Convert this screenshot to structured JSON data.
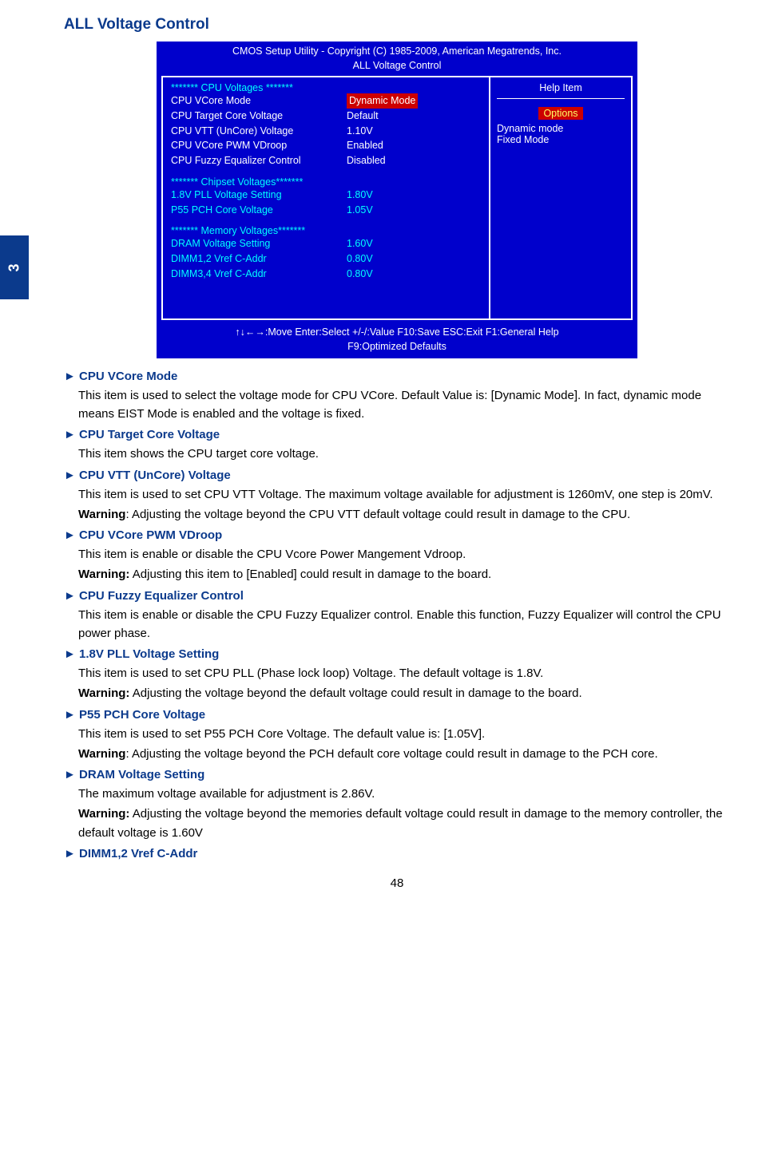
{
  "page": {
    "sideTab": "3",
    "title": "ALL Voltage Control",
    "pageNumber": "48"
  },
  "bios": {
    "headerLine1": "CMOS Setup Utility - Copyright (C) 1985-2009, American Megatrends, Inc.",
    "headerLine2": "ALL Voltage Control",
    "sections": {
      "cpuHeader": "******* CPU Voltages *******",
      "rows": [
        {
          "label": "CPU VCore Mode",
          "value": "Dynamic Mode",
          "highlight": true,
          "cyan": false
        },
        {
          "label": "CPU Target Core Voltage",
          "value": "Default",
          "highlight": false,
          "cyan": false
        },
        {
          "label": "CPU VTT (UnCore) Voltage",
          "value": "1.10V",
          "highlight": false,
          "cyan": false
        },
        {
          "label": "CPU VCore PWM VDroop",
          "value": "Enabled",
          "highlight": false,
          "cyan": false
        },
        {
          "label": "CPU Fuzzy Equalizer Control",
          "value": "Disabled",
          "highlight": false,
          "cyan": false
        }
      ],
      "chipsetHeader": "******* Chipset Voltages*******",
      "chipsetRows": [
        {
          "label": "1.8V PLL Voltage Setting",
          "value": "1.80V"
        },
        {
          "label": "P55 PCH Core Voltage",
          "value": "1.05V"
        }
      ],
      "memoryHeader": "******* Memory Voltages*******",
      "memoryRows": [
        {
          "label": "DRAM Voltage Setting",
          "value": "1.60V"
        },
        {
          "label": "DIMM1,2 Vref C-Addr",
          "value": "0.80V"
        },
        {
          "label": "DIMM3,4 Vref C-Addr",
          "value": "0.80V"
        }
      ]
    },
    "help": {
      "title": "Help Item",
      "optionsLabel": "Options",
      "opt1": "Dynamic mode",
      "opt2": "Fixed Mode"
    },
    "footerLine1": "↑↓←→:Move   Enter:Select    +/-/:Value   F10:Save   ESC:Exit    F1:General Help",
    "footerLine2": "F9:Optimized Defaults"
  },
  "content": [
    {
      "heading": "► CPU VCore Mode",
      "paras": [
        "This item is used to select the voltage mode for CPU VCore. Default Value is: [Dynamic Mode]. In fact, dynamic mode means EIST Mode is enabled and the voltage is fixed."
      ]
    },
    {
      "heading": "► CPU Target Core Voltage",
      "paras": [
        "This item shows the CPU target core voltage."
      ]
    },
    {
      "heading": "► CPU VTT (UnCore) Voltage",
      "paras": [
        "This item is used to set CPU VTT Voltage. The maximum voltage available for adjustment is 1260mV, one step is 20mV.",
        "<b>Warning</b>: Adjusting the voltage beyond the CPU VTT default voltage could result in damage to the CPU."
      ]
    },
    {
      "heading": "► CPU VCore PWM VDroop",
      "paras": [
        "This item is enable or disable the CPU Vcore Power Mangement Vdroop.",
        "<b>Warning:</b> Adjusting this item to [Enabled] could result in damage to the board."
      ]
    },
    {
      "heading": "► CPU Fuzzy Equalizer Control",
      "paras": [
        "This item is enable or disable the CPU Fuzzy Equalizer control. Enable this function, Fuzzy Equalizer will control the CPU power phase."
      ]
    },
    {
      "heading": "► 1.8V PLL Voltage Setting",
      "paras": [
        "This item is used to set CPU PLL (Phase lock loop) Voltage. The default voltage is 1.8V.",
        "<b>Warning:</b> Adjusting the voltage beyond the default voltage could result in damage to the board."
      ]
    },
    {
      "heading": "► P55 PCH Core Voltage",
      "paras": [
        "This item is used to set P55 PCH Core Voltage. The default value is: [1.05V].",
        "<b>Warning</b>: Adjusting the voltage beyond the PCH default core voltage could result in damage to the PCH core."
      ]
    },
    {
      "heading": "► DRAM Voltage Setting",
      "paras": [
        "The maximum voltage available for adjustment is 2.86V.",
        "<b>Warning:</b> Adjusting the voltage beyond the memories default voltage could result in damage to the memory controller, the default voltage is 1.60V"
      ]
    },
    {
      "heading": "► DIMM1,2 Vref C-Addr",
      "paras": []
    }
  ]
}
